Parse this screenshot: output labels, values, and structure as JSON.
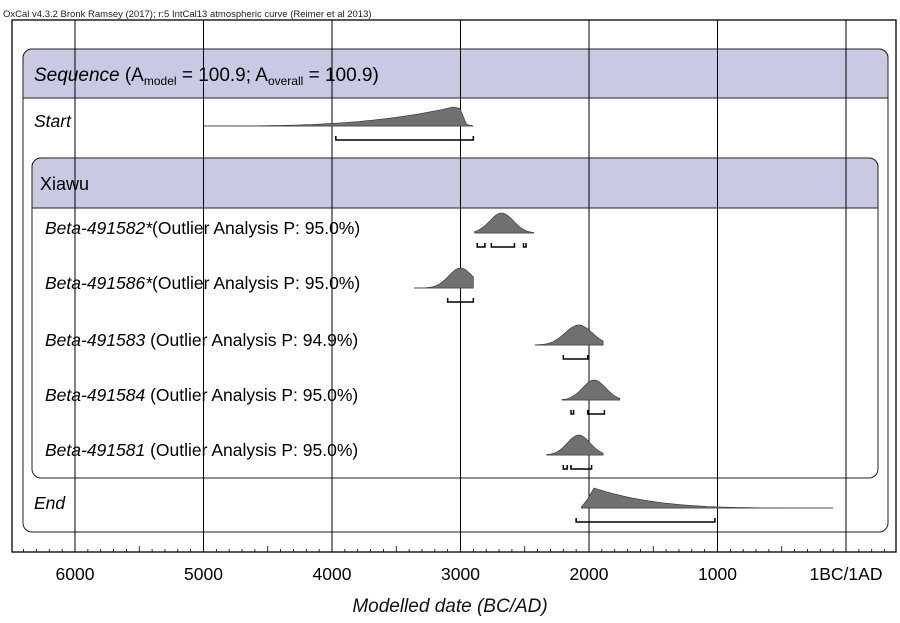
{
  "credit": "OxCal v4.3.2 Bronk Ramsey (2017); r:5 IntCal13 atmospheric curve (Reimer et al 2013)",
  "chart_data": {
    "type": "ridgeline",
    "xlabel": "Modelled date (BC/AD)",
    "x_axis": {
      "range_bc": [
        6400,
        -350
      ],
      "ticks": [
        {
          "value": 6000,
          "label": "6000"
        },
        {
          "value": 5000,
          "label": "5000"
        },
        {
          "value": 4000,
          "label": "4000"
        },
        {
          "value": 3000,
          "label": "3000"
        },
        {
          "value": 2000,
          "label": "2000"
        },
        {
          "value": 1000,
          "label": "1000"
        },
        {
          "value": 0,
          "label": "1BC/1AD"
        }
      ],
      "grid": true
    },
    "sequence": {
      "label": "Sequence",
      "amodel_sub": "model",
      "amodel_value": "100.9",
      "aoverall_sub": "overall",
      "aoverall_value": "100.9"
    },
    "phase": {
      "label": "Xiawu"
    },
    "rows": [
      {
        "name": "Start",
        "note": "",
        "prior_range": [
          5000,
          2900
        ],
        "peak": 3020,
        "ranges_95": [
          [
            3970,
            2900
          ]
        ]
      },
      {
        "name": "Beta-491582*",
        "note": "(Outlier Analysis P: 95.0%)",
        "prior_range": [
          2890,
          2430
        ],
        "peak": 2680,
        "ranges_95": [
          [
            2870,
            2810
          ],
          [
            2760,
            2580
          ],
          [
            2510,
            2490
          ]
        ]
      },
      {
        "name": "Beta-491586*",
        "note": "(Outlier Analysis P: 95.0%)",
        "prior_range": [
          3360,
          2900
        ],
        "peak": 3000,
        "ranges_95": [
          [
            3100,
            2900
          ]
        ]
      },
      {
        "name": "Beta-491583",
        "note": "(Outlier Analysis P: 94.9%)",
        "prior_range": [
          2420,
          1890
        ],
        "peak": 2080,
        "ranges_95": [
          [
            2200,
            2010
          ]
        ]
      },
      {
        "name": "Beta-491584",
        "note": "(Outlier Analysis P: 95.0%)",
        "prior_range": [
          2210,
          1760
        ],
        "peak": 1960,
        "ranges_95": [
          [
            2140,
            2120
          ],
          [
            2010,
            1880
          ]
        ]
      },
      {
        "name": "Beta-491581",
        "note": "(Outlier Analysis P: 95.0%)",
        "prior_range": [
          2330,
          1890
        ],
        "peak": 2080,
        "ranges_95": [
          [
            2200,
            2170
          ],
          [
            2140,
            1980
          ]
        ]
      },
      {
        "name": "End",
        "note": "",
        "prior_range": [
          2060,
          100
        ],
        "peak": 1960,
        "ranges_95": [
          [
            2100,
            1020
          ]
        ]
      }
    ]
  }
}
